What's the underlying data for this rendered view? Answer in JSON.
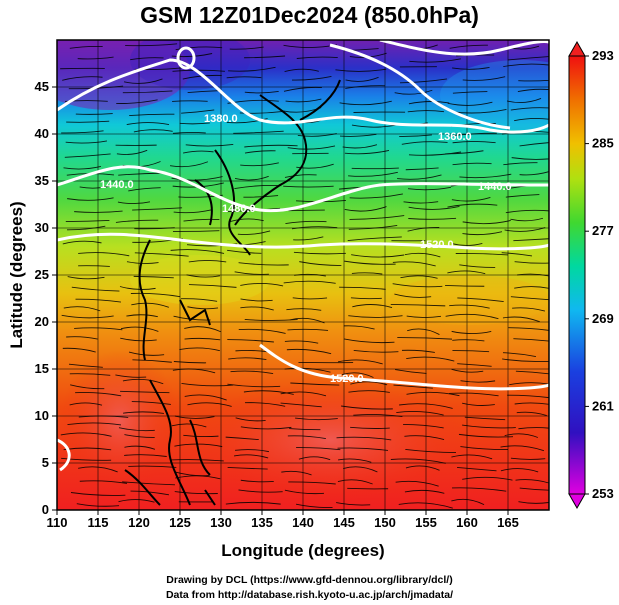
{
  "title": "GSM 12Z01Dec2024 (850.0hPa)",
  "xlabel": "Longitude (degrees)",
  "ylabel": "Latitude  (degrees)",
  "x_ticks": [
    "110",
    "115",
    "120",
    "125",
    "130",
    "135",
    "140",
    "145",
    "150",
    "155",
    "160",
    "165"
  ],
  "y_ticks": [
    "0",
    "5",
    "10",
    "15",
    "20",
    "25",
    "30",
    "35",
    "40",
    "45"
  ],
  "colorbar": {
    "min": 253,
    "max": 293,
    "ticks": [
      "293",
      "285",
      "277",
      "269",
      "261",
      "253"
    ]
  },
  "contour_labels": [
    "1380.0",
    "1440.0",
    "1480.0",
    "1520.0",
    "1440.0",
    "1480.0",
    "1520.0",
    "1360.0"
  ],
  "credits": {
    "line1": "Drawing by DCL (https://www.gfd-dennou.org/library/dcl/)",
    "line2": "Data from http://database.rish.kyoto-u.ac.jp/arch/jmadata/"
  },
  "chart_data": {
    "type": "heatmap",
    "title": "GSM 12Z01Dec2024 (850.0hPa)",
    "xlabel": "Longitude (degrees)",
    "ylabel": "Latitude  (degrees)",
    "xlim": [
      110,
      170
    ],
    "ylim": [
      0,
      50
    ],
    "colorbar_range": [
      253,
      293
    ],
    "colormap": [
      "#e000e0",
      "#1a1ad0",
      "#1aa0e8",
      "#00d8c0",
      "#38d838",
      "#c8e010",
      "#f0a000",
      "#f03010"
    ],
    "grid": true,
    "overlays": [
      "streamlines",
      "geopotential height contours",
      "coastlines"
    ],
    "contour_labels": [
      "1380.0",
      "1440.0",
      "1480.0",
      "1520.0",
      "1360.0"
    ]
  }
}
